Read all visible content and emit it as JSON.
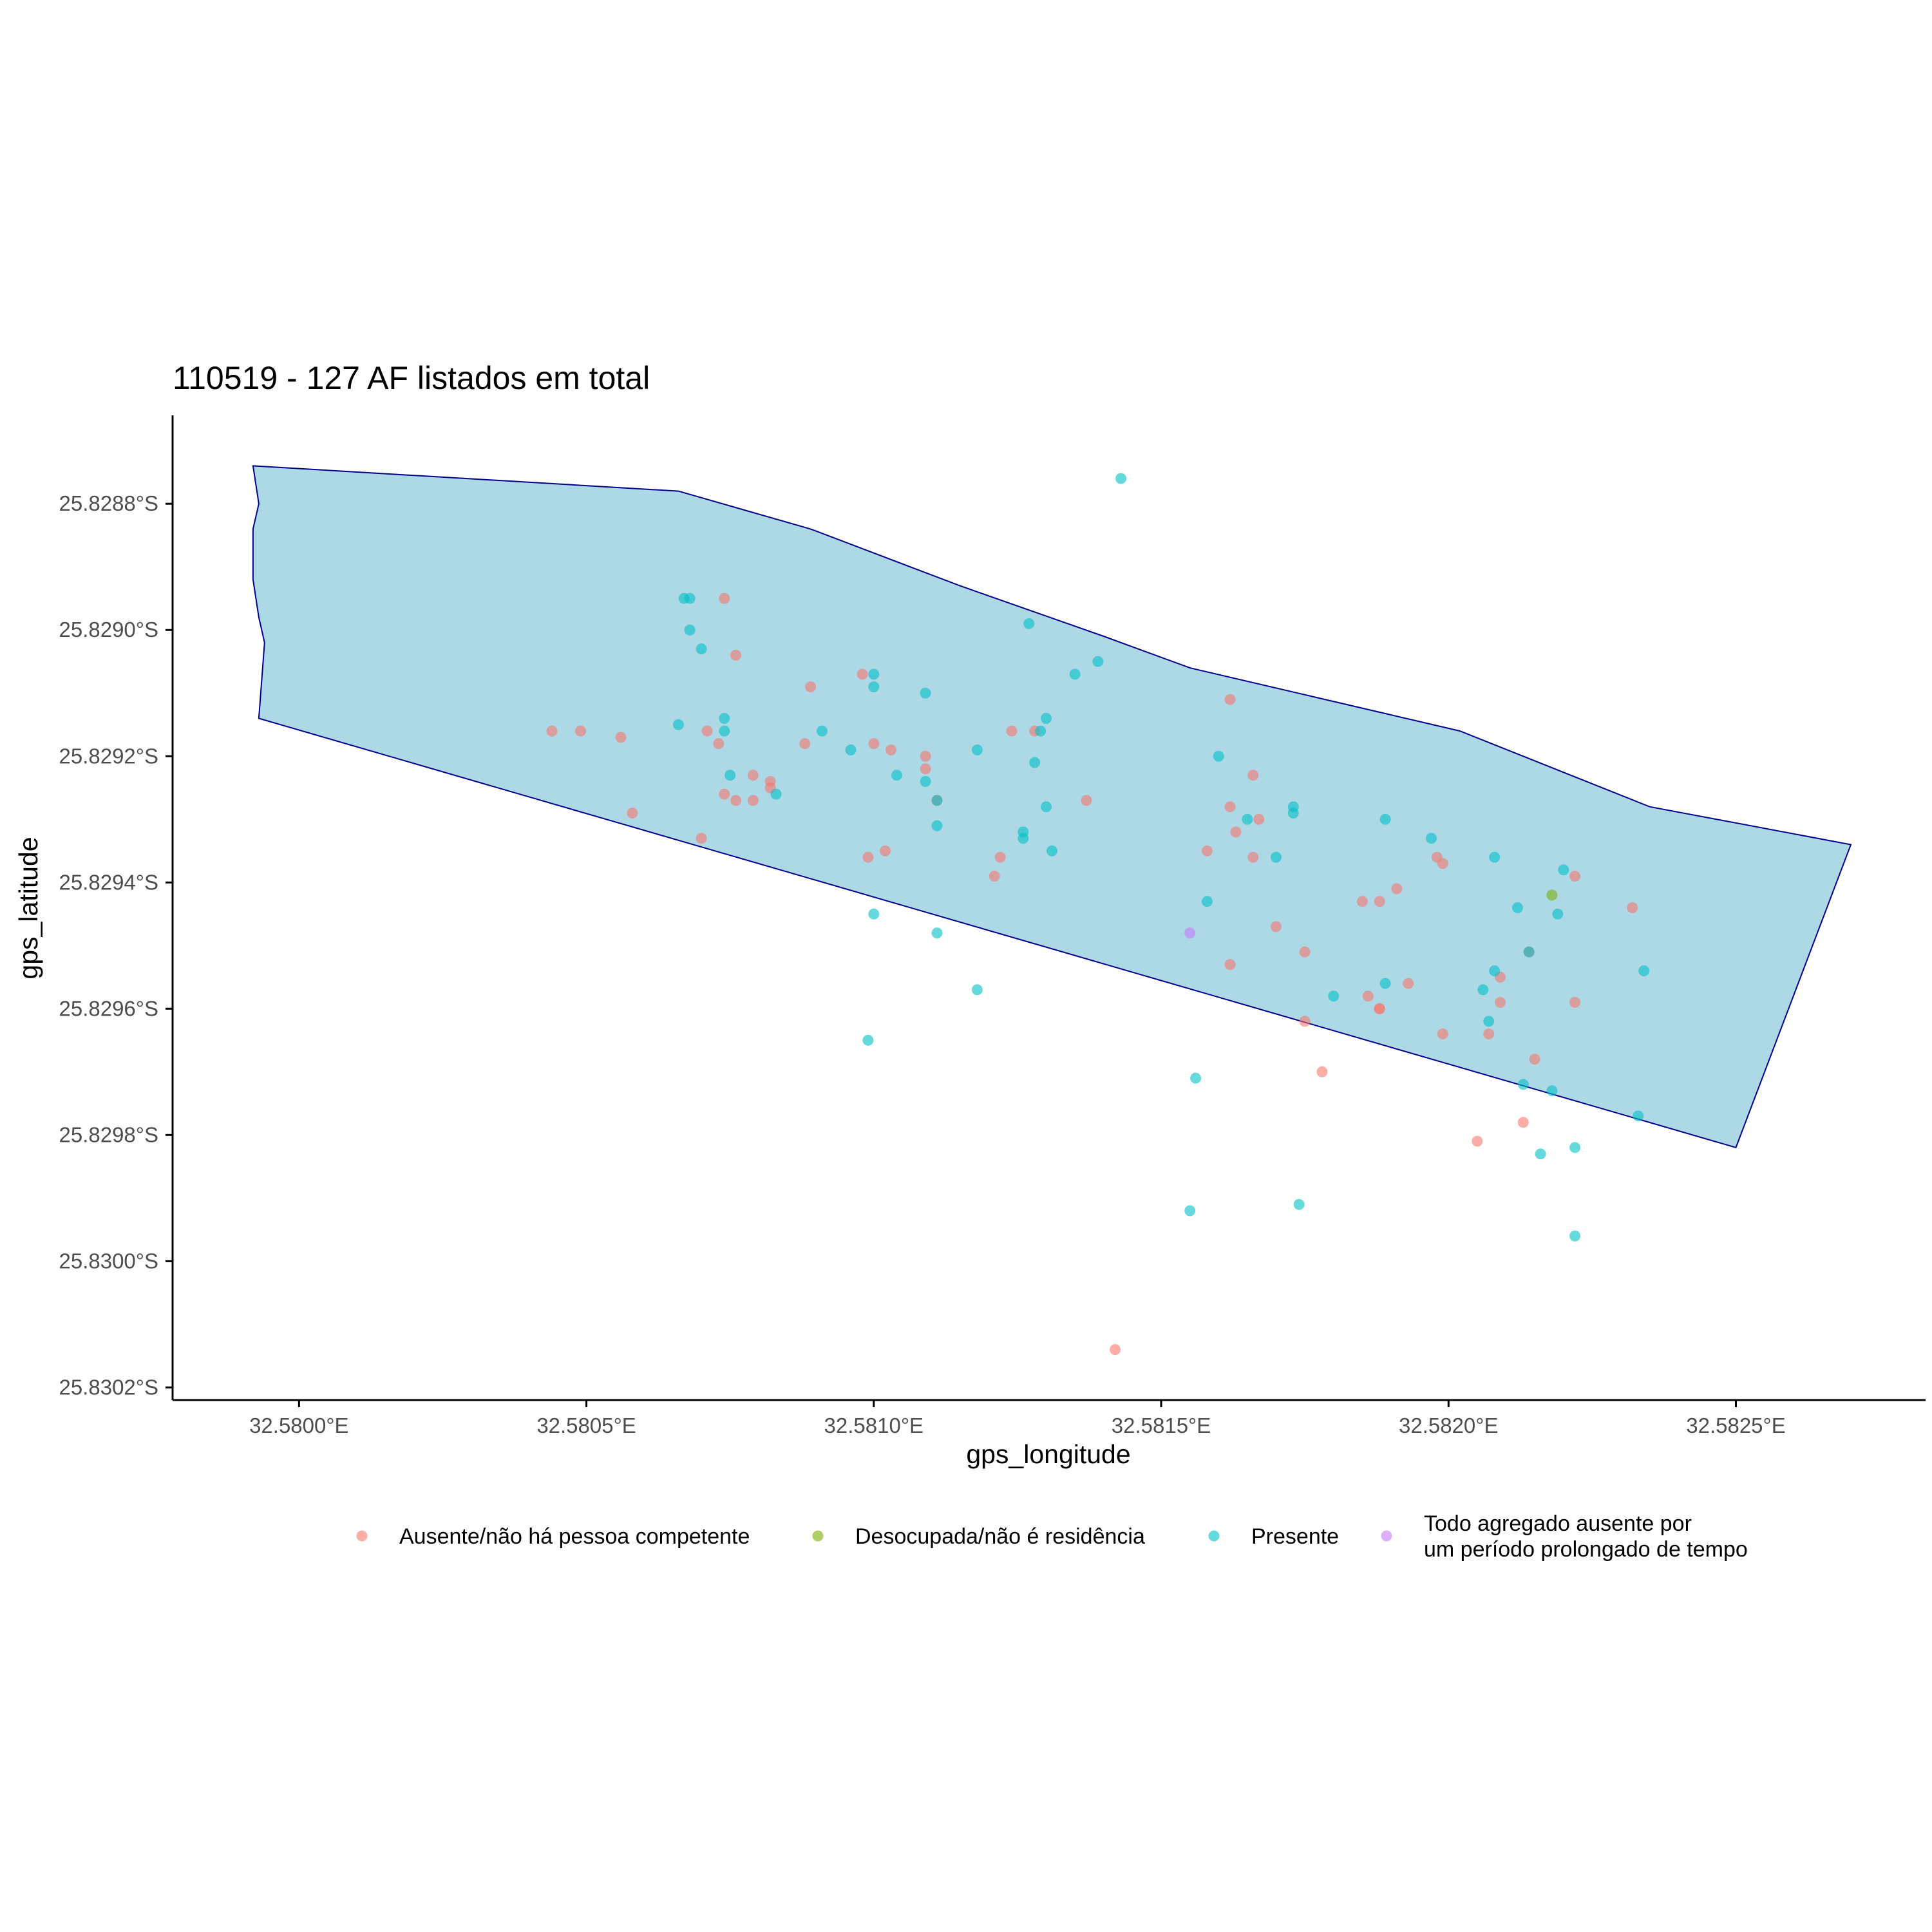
{
  "chart_data": {
    "type": "scatter",
    "title": "110519 - 127 AF listados em total",
    "xlabel": "gps_longitude",
    "ylabel": "gps_latitude",
    "xlim": [
      32.57978,
      32.58283
    ],
    "ylim": [
      -25.83022,
      -25.82866
    ],
    "x_ticks": [
      {
        "value": 32.58,
        "label": "32.5800°E"
      },
      {
        "value": 32.5805,
        "label": "32.5805°E"
      },
      {
        "value": 32.581,
        "label": "32.5810°E"
      },
      {
        "value": 32.5815,
        "label": "32.5815°E"
      },
      {
        "value": 32.582,
        "label": "32.5820°E"
      },
      {
        "value": 32.5825,
        "label": "32.5825°E"
      }
    ],
    "y_ticks": [
      {
        "value": -25.8288,
        "label": "25.8288°S"
      },
      {
        "value": -25.829,
        "label": "25.8290°S"
      },
      {
        "value": -25.8292,
        "label": "25.8292°S"
      },
      {
        "value": -25.8294,
        "label": "25.8294°S"
      },
      {
        "value": -25.8296,
        "label": "25.8296°S"
      },
      {
        "value": -25.8298,
        "label": "25.8298°S"
      },
      {
        "value": -25.83,
        "label": "25.8300°S"
      },
      {
        "value": -25.8302,
        "label": "25.8302°S"
      }
    ],
    "grid": false,
    "legend_position": "bottom",
    "boundary": {
      "fill": "#add8e6",
      "stroke": "#00008b",
      "points": [
        [
          32.57992,
          -25.82874
        ],
        [
          32.58066,
          -25.82878
        ],
        [
          32.58089,
          -25.82884
        ],
        [
          32.58115,
          -25.82893
        ],
        [
          32.5814,
          -25.82901
        ],
        [
          32.58155,
          -25.82906
        ],
        [
          32.58202,
          -25.82916
        ],
        [
          32.58235,
          -25.82928
        ],
        [
          32.5827,
          -25.82934
        ],
        [
          32.5825,
          -25.82982
        ],
        [
          32.57993,
          -25.82914
        ],
        [
          32.57994,
          -25.82902
        ],
        [
          32.57993,
          -25.82898
        ],
        [
          32.57992,
          -25.82892
        ],
        [
          32.57992,
          -25.82884
        ],
        [
          32.57993,
          -25.8288
        ],
        [
          32.57992,
          -25.82874
        ]
      ]
    },
    "series": [
      {
        "name": "Ausente/não há pessoa competente",
        "color": "#f8766d",
        "points": [
          [
            32.58074,
            -25.82895
          ],
          [
            32.58076,
            -25.82904
          ],
          [
            32.58089,
            -25.82909
          ],
          [
            32.58098,
            -25.82907
          ],
          [
            32.58162,
            -25.82911
          ],
          [
            32.58044,
            -25.82916
          ],
          [
            32.58049,
            -25.82916
          ],
          [
            32.58056,
            -25.82917
          ],
          [
            32.58071,
            -25.82916
          ],
          [
            32.58073,
            -25.82918
          ],
          [
            32.58088,
            -25.82918
          ],
          [
            32.581,
            -25.82918
          ],
          [
            32.58103,
            -25.82919
          ],
          [
            32.58109,
            -25.8292
          ],
          [
            32.58124,
            -25.82916
          ],
          [
            32.58128,
            -25.82916
          ],
          [
            32.58109,
            -25.82922
          ],
          [
            32.58079,
            -25.82923
          ],
          [
            32.58082,
            -25.82924
          ],
          [
            32.58082,
            -25.82925
          ],
          [
            32.58166,
            -25.82923
          ],
          [
            32.58074,
            -25.82926
          ],
          [
            32.58076,
            -25.82927
          ],
          [
            32.58079,
            -25.82927
          ],
          [
            32.58111,
            -25.82927
          ],
          [
            32.58137,
            -25.82927
          ],
          [
            32.58162,
            -25.82928
          ],
          [
            32.58058,
            -25.82929
          ],
          [
            32.58167,
            -25.8293
          ],
          [
            32.58163,
            -25.82932
          ],
          [
            32.5807,
            -25.82933
          ],
          [
            32.58099,
            -25.82936
          ],
          [
            32.58102,
            -25.82935
          ],
          [
            32.58122,
            -25.82936
          ],
          [
            32.58158,
            -25.82935
          ],
          [
            32.58166,
            -25.82936
          ],
          [
            32.58198,
            -25.82936
          ],
          [
            32.58199,
            -25.82937
          ],
          [
            32.58121,
            -25.82939
          ],
          [
            32.58191,
            -25.82941
          ],
          [
            32.58185,
            -25.82943
          ],
          [
            32.58188,
            -25.82943
          ],
          [
            32.58222,
            -25.82939
          ],
          [
            32.58232,
            -25.82944
          ],
          [
            32.5817,
            -25.82947
          ],
          [
            32.58162,
            -25.82953
          ],
          [
            32.58175,
            -25.82951
          ],
          [
            32.58214,
            -25.82951
          ],
          [
            32.58193,
            -25.82956
          ],
          [
            32.58209,
            -25.82955
          ],
          [
            32.58186,
            -25.82958
          ],
          [
            32.58188,
            -25.8296
          ],
          [
            32.58188,
            -25.8296
          ],
          [
            32.58209,
            -25.82959
          ],
          [
            32.58222,
            -25.82959
          ],
          [
            32.58175,
            -25.82962
          ],
          [
            32.58199,
            -25.82964
          ],
          [
            32.58207,
            -25.82964
          ],
          [
            32.58215,
            -25.82968
          ],
          [
            32.58178,
            -25.8297
          ],
          [
            32.58213,
            -25.82978
          ],
          [
            32.58205,
            -25.82981
          ],
          [
            32.58142,
            -25.83014
          ]
        ]
      },
      {
        "name": "Desocupada/não é residência",
        "color": "#7cae00",
        "points": [
          [
            32.58218,
            -25.82942
          ]
        ]
      },
      {
        "name": "Presente",
        "color": "#00bfc4",
        "points": [
          [
            32.58143,
            -25.82876
          ],
          [
            32.58067,
            -25.82895
          ],
          [
            32.58068,
            -25.82895
          ],
          [
            32.58068,
            -25.829
          ],
          [
            32.5807,
            -25.82903
          ],
          [
            32.58127,
            -25.82899
          ],
          [
            32.58139,
            -25.82905
          ],
          [
            32.58135,
            -25.82907
          ],
          [
            32.581,
            -25.82907
          ],
          [
            32.581,
            -25.82909
          ],
          [
            32.58109,
            -25.8291
          ],
          [
            32.58066,
            -25.82915
          ],
          [
            32.58074,
            -25.82914
          ],
          [
            32.58074,
            -25.82916
          ],
          [
            32.5813,
            -25.82914
          ],
          [
            32.58129,
            -25.82916
          ],
          [
            32.58091,
            -25.82916
          ],
          [
            32.58096,
            -25.82919
          ],
          [
            32.58118,
            -25.82919
          ],
          [
            32.5816,
            -25.8292
          ],
          [
            32.58128,
            -25.82921
          ],
          [
            32.58075,
            -25.82923
          ],
          [
            32.58104,
            -25.82923
          ],
          [
            32.58109,
            -25.82924
          ],
          [
            32.58083,
            -25.82926
          ],
          [
            32.58111,
            -25.82927
          ],
          [
            32.5813,
            -25.82928
          ],
          [
            32.58173,
            -25.82928
          ],
          [
            32.58173,
            -25.82929
          ],
          [
            32.58165,
            -25.8293
          ],
          [
            32.58189,
            -25.8293
          ],
          [
            32.58111,
            -25.82931
          ],
          [
            32.58197,
            -25.82933
          ],
          [
            32.58126,
            -25.82933
          ],
          [
            32.58126,
            -25.82932
          ],
          [
            32.58131,
            -25.82935
          ],
          [
            32.5817,
            -25.82936
          ],
          [
            32.58208,
            -25.82936
          ],
          [
            32.5822,
            -25.82938
          ],
          [
            32.58158,
            -25.82943
          ],
          [
            32.58212,
            -25.82944
          ],
          [
            32.58219,
            -25.82945
          ],
          [
            32.581,
            -25.82945
          ],
          [
            32.58111,
            -25.82948
          ],
          [
            32.58214,
            -25.82951
          ],
          [
            32.58208,
            -25.82954
          ],
          [
            32.58234,
            -25.82954
          ],
          [
            32.58189,
            -25.82956
          ],
          [
            32.58206,
            -25.82957
          ],
          [
            32.58118,
            -25.82957
          ],
          [
            32.5818,
            -25.82958
          ],
          [
            32.58207,
            -25.82962
          ],
          [
            32.58099,
            -25.82965
          ],
          [
            32.58156,
            -25.82971
          ],
          [
            32.58213,
            -25.82972
          ],
          [
            32.58218,
            -25.82973
          ],
          [
            32.58233,
            -25.82977
          ],
          [
            32.58222,
            -25.82982
          ],
          [
            32.58216,
            -25.82983
          ],
          [
            32.58174,
            -25.82991
          ],
          [
            32.58155,
            -25.82992
          ],
          [
            32.58222,
            -25.82996
          ]
        ]
      },
      {
        "name": "Todo agregado ausente por um período prolongado de tempo",
        "color": "#c77cff",
        "points": [
          [
            32.58155,
            -25.82948
          ]
        ]
      }
    ],
    "legend": [
      {
        "lines": [
          "Ausente/não há pessoa competente"
        ],
        "color": "#f8766d"
      },
      {
        "lines": [
          "Desocupada/não é residência"
        ],
        "color": "#7cae00"
      },
      {
        "lines": [
          "Presente"
        ],
        "color": "#00bfc4"
      },
      {
        "lines": [
          "Todo agregado ausente por",
          "um período prolongado de tempo"
        ],
        "color": "#c77cff"
      }
    ]
  }
}
